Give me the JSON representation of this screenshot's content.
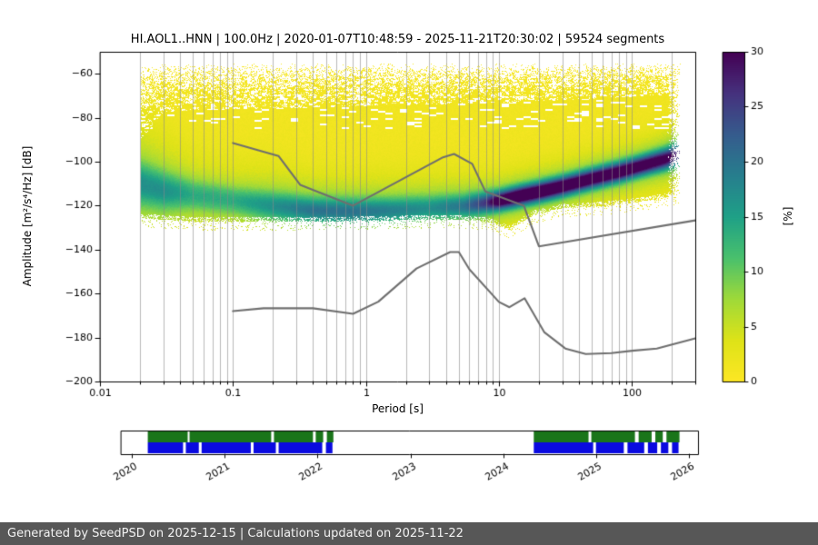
{
  "chart_data": {
    "type": "heatmap",
    "title": "HI.AOL1..HNN | 100.0Hz | 2020-01-07T10:48:59 - 2025-11-21T20:30:02 | 59524 segments",
    "xlabel": "Period [s]",
    "ylabel": "Amplitude [m²/s⁴/Hz] [dB]",
    "xscale": "log",
    "xlim": [
      0.01,
      300
    ],
    "ylim": [
      -200,
      -50
    ],
    "xticks": [
      0.01,
      0.1,
      1,
      10,
      100
    ],
    "xtick_labels": [
      "0.01",
      "0.1",
      "1",
      "10",
      "100"
    ],
    "yticks": [
      -200,
      -180,
      -160,
      -140,
      -120,
      -100,
      -80,
      -60
    ],
    "ytick_labels": [
      "−200",
      "−180",
      "−160",
      "−140",
      "−120",
      "−100",
      "−80",
      "−60"
    ],
    "grid_color": "#8a8a8a",
    "colorbar": {
      "label": "[%]",
      "min": 0,
      "max": 30,
      "ticks": [
        0,
        5,
        10,
        15,
        20,
        25,
        30
      ],
      "viridis_stops": [
        "#440154",
        "#46327e",
        "#365c8d",
        "#277f8e",
        "#1fa187",
        "#4ac16d",
        "#a0da39",
        "#dfe318",
        "#fde725"
      ]
    },
    "histogram": {
      "period_range": [
        0.02,
        230
      ],
      "speckle_top_db": -55,
      "base_pct": 1.3,
      "top_profile": [
        [
          0.02,
          -90
        ],
        [
          0.03,
          -77
        ],
        [
          0.1,
          -76
        ],
        [
          0.5,
          -75
        ],
        [
          2,
          -74
        ],
        [
          10,
          -73
        ],
        [
          60,
          -71
        ],
        [
          230,
          -69
        ]
      ],
      "bottom_profile": [
        [
          0.02,
          -125.5
        ],
        [
          0.05,
          -127
        ],
        [
          0.5,
          -127
        ],
        [
          4,
          -126
        ],
        [
          8,
          -127
        ],
        [
          12,
          -131
        ],
        [
          18,
          -124
        ],
        [
          30,
          -121
        ],
        [
          60,
          -120
        ],
        [
          120,
          -118
        ],
        [
          230,
          -115
        ]
      ],
      "ridge": [
        [
          0.02,
          -110.0,
          7.0,
          10
        ],
        [
          0.03,
          -113.0,
          6.0,
          10
        ],
        [
          0.05,
          -115.0,
          5.0,
          8
        ],
        [
          0.1,
          -117.5,
          4.5,
          8
        ],
        [
          0.2,
          -120.0,
          4.5,
          10
        ],
        [
          0.4,
          -122.0,
          4.0,
          12
        ],
        [
          0.8,
          -122.5,
          4.0,
          12
        ],
        [
          1.6,
          -122.0,
          4.0,
          11
        ],
        [
          3.0,
          -121.0,
          4.0,
          10
        ],
        [
          5.5,
          -120.0,
          3.5,
          12
        ],
        [
          8.0,
          -118.5,
          3.2,
          18
        ],
        [
          10.0,
          -117.5,
          3.0,
          26
        ],
        [
          14.0,
          -115.5,
          3.0,
          29
        ],
        [
          20.0,
          -113.5,
          3.0,
          29
        ],
        [
          30.0,
          -111.0,
          3.0,
          28
        ],
        [
          50.0,
          -107.5,
          3.0,
          27
        ],
        [
          80.0,
          -104.5,
          3.0,
          27
        ],
        [
          120.0,
          -101.5,
          3.0,
          26
        ],
        [
          180.0,
          -98.5,
          3.2,
          24
        ],
        [
          230.0,
          -96.0,
          3.5,
          18
        ]
      ]
    },
    "noise_models": {
      "color": "#6f6f6f",
      "high": [
        [
          0.1,
          -91.5
        ],
        [
          0.22,
          -97.4
        ],
        [
          0.32,
          -110.5
        ],
        [
          0.8,
          -120.0
        ],
        [
          3.8,
          -98.0
        ],
        [
          4.6,
          -96.5
        ],
        [
          6.3,
          -101.0
        ],
        [
          7.9,
          -113.5
        ],
        [
          15.4,
          -120.0
        ],
        [
          20.0,
          -138.5
        ],
        [
          300,
          -126.7
        ]
      ],
      "low": [
        [
          0.1,
          -168.0
        ],
        [
          0.17,
          -166.7
        ],
        [
          0.4,
          -166.7
        ],
        [
          0.8,
          -169.2
        ],
        [
          1.24,
          -163.7
        ],
        [
          2.4,
          -148.6
        ],
        [
          4.3,
          -141.1
        ],
        [
          5.0,
          -141.1
        ],
        [
          6.0,
          -149.0
        ],
        [
          10.0,
          -163.8
        ],
        [
          12.0,
          -166.2
        ],
        [
          15.6,
          -162.1
        ],
        [
          21.9,
          -177.5
        ],
        [
          31.6,
          -185.0
        ],
        [
          45.0,
          -187.5
        ],
        [
          70.0,
          -187.1
        ],
        [
          101.0,
          -186.0
        ],
        [
          154.0,
          -185.0
        ],
        [
          300,
          -180.4
        ]
      ]
    },
    "timeline": {
      "range": [
        2019.88,
        2026.1
      ],
      "ticks": [
        2020,
        2021,
        2022,
        2023,
        2024,
        2025,
        2026
      ],
      "green_color": "#1a751a",
      "blue_color": "#0a0ae0",
      "green_intervals": [
        [
          2020.17,
          2020.6
        ],
        [
          2020.62,
          2021.5
        ],
        [
          2021.53,
          2021.95
        ],
        [
          2021.98,
          2022.06
        ],
        [
          2022.1,
          2022.17
        ],
        [
          2024.33,
          2024.92
        ],
        [
          2024.95,
          2025.42
        ],
        [
          2025.46,
          2025.6
        ],
        [
          2025.64,
          2025.72
        ],
        [
          2025.76,
          2025.9
        ]
      ],
      "blue_intervals": [
        [
          2020.17,
          2020.55
        ],
        [
          2020.58,
          2020.72
        ],
        [
          2020.75,
          2021.28
        ],
        [
          2021.31,
          2021.55
        ],
        [
          2021.58,
          2022.05
        ],
        [
          2022.09,
          2022.16
        ],
        [
          2024.33,
          2024.97
        ],
        [
          2025.0,
          2025.3
        ],
        [
          2025.34,
          2025.52
        ],
        [
          2025.56,
          2025.66
        ],
        [
          2025.7,
          2025.78
        ],
        [
          2025.82,
          2025.89
        ]
      ]
    }
  },
  "footer": {
    "text": "Generated by SeedPSD on 2025-12-15 | Calculations updated on 2025-11-22",
    "bg": "#575757",
    "color": "#f2f2f2"
  }
}
